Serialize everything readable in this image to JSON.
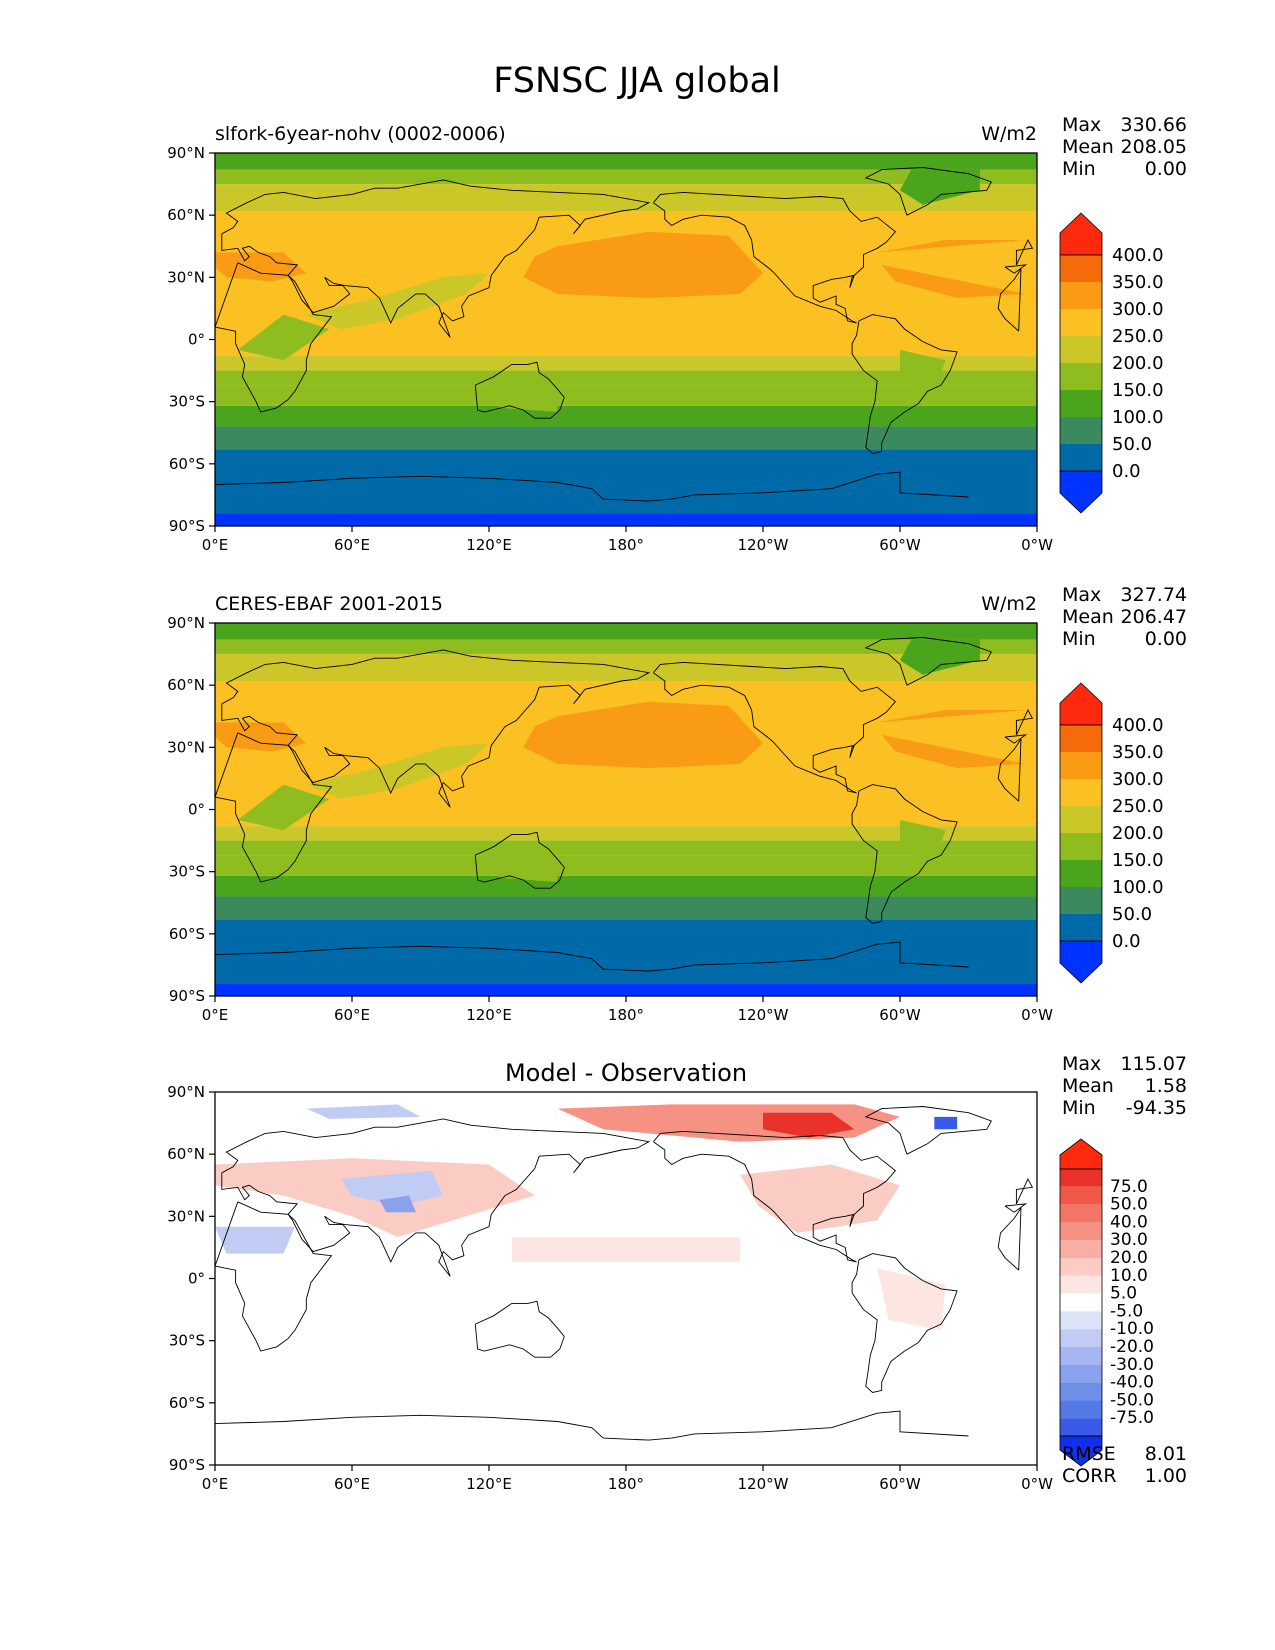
{
  "figure_title": "FSNSC JJA global",
  "colors": {
    "abs_levels": [
      "#0033ff",
      "#006aa8",
      "#3a8a5e",
      "#4aa51c",
      "#8fbd1f",
      "#cbc729",
      "#fbc122",
      "#f99b15",
      "#f56b09",
      "#ff2a0e"
    ],
    "diff_levels": [
      "#1030f0",
      "#3a5ae8",
      "#5478e6",
      "#6e8ee8",
      "#8aa2ec",
      "#a5b6f0",
      "#c1ccf4",
      "#dde3f8",
      "#ffffff",
      "#fde6e2",
      "#fbccc4",
      "#f9aea4",
      "#f69284",
      "#f37565",
      "#f05848",
      "#e8322a",
      "#ff2a0e"
    ],
    "land_outline": "#000000"
  },
  "chart_data": [
    {
      "type": "heatmap",
      "name": "test-map",
      "title_left": "slfork-6year-nohv (0002-0006)",
      "title_right": "W/m2",
      "title_center": "",
      "x_ticks": [
        "0°E",
        "60°E",
        "120°E",
        "180°",
        "120°W",
        "60°W",
        "0°W"
      ],
      "y_ticks": [
        "90°N",
        "60°N",
        "30°N",
        "0°",
        "30°S",
        "60°S",
        "90°S"
      ],
      "xlim": [
        0,
        360
      ],
      "ylim": [
        -90,
        90
      ],
      "stats": [
        {
          "label": "Max",
          "value": "330.66"
        },
        {
          "label": "Mean",
          "value": "208.05"
        },
        {
          "label": "Min",
          "value": "0.00"
        }
      ],
      "colorbar_labels": [
        "400.0",
        "350.0",
        "300.0",
        "250.0",
        "200.0",
        "150.0",
        "100.0",
        "50.0",
        "0.0"
      ],
      "zonal_bands": [
        {
          "lat": [
            82,
            90
          ],
          "level": 3
        },
        {
          "lat": [
            75,
            82
          ],
          "level": 4
        },
        {
          "lat": [
            62,
            75
          ],
          "level": 5
        },
        {
          "lat": [
            -8,
            62
          ],
          "level": 6
        },
        {
          "lat": [
            -15,
            -8
          ],
          "level": 5
        },
        {
          "lat": [
            -22,
            -15
          ],
          "level": 4
        },
        {
          "lat": [
            -32,
            -22
          ],
          "level": 4
        },
        {
          "lat": [
            -42,
            -32
          ],
          "level": 3
        },
        {
          "lat": [
            -53,
            -42
          ],
          "level": 2
        },
        {
          "lat": [
            -84,
            -53
          ],
          "level": 1
        },
        {
          "lat": [
            -90,
            -84
          ],
          "level": 0
        }
      ]
    },
    {
      "type": "heatmap",
      "name": "reference-map",
      "title_left": "CERES-EBAF 2001-2015",
      "title_right": "W/m2",
      "title_center": "",
      "x_ticks": [
        "0°E",
        "60°E",
        "120°E",
        "180°",
        "120°W",
        "60°W",
        "0°W"
      ],
      "y_ticks": [
        "90°N",
        "60°N",
        "30°N",
        "0°",
        "30°S",
        "60°S",
        "90°S"
      ],
      "xlim": [
        0,
        360
      ],
      "ylim": [
        -90,
        90
      ],
      "stats": [
        {
          "label": "Max",
          "value": "327.74"
        },
        {
          "label": "Mean",
          "value": "206.47"
        },
        {
          "label": "Min",
          "value": "0.00"
        }
      ],
      "colorbar_labels": [
        "400.0",
        "350.0",
        "300.0",
        "250.0",
        "200.0",
        "150.0",
        "100.0",
        "50.0",
        "0.0"
      ],
      "zonal_bands": [
        {
          "lat": [
            82,
            90
          ],
          "level": 3
        },
        {
          "lat": [
            75,
            82
          ],
          "level": 4
        },
        {
          "lat": [
            62,
            75
          ],
          "level": 5
        },
        {
          "lat": [
            -8,
            62
          ],
          "level": 6
        },
        {
          "lat": [
            -15,
            -8
          ],
          "level": 5
        },
        {
          "lat": [
            -22,
            -15
          ],
          "level": 4
        },
        {
          "lat": [
            -32,
            -22
          ],
          "level": 4
        },
        {
          "lat": [
            -42,
            -32
          ],
          "level": 3
        },
        {
          "lat": [
            -53,
            -42
          ],
          "level": 2
        },
        {
          "lat": [
            -84,
            -53
          ],
          "level": 1
        },
        {
          "lat": [
            -90,
            -84
          ],
          "level": 0
        }
      ]
    },
    {
      "type": "heatmap",
      "name": "difference-map",
      "title_left": "",
      "title_right": "",
      "title_center": "Model - Observation",
      "x_ticks": [
        "0°E",
        "60°E",
        "120°E",
        "180°",
        "120°W",
        "60°W",
        "0°W"
      ],
      "y_ticks": [
        "90°N",
        "60°N",
        "30°N",
        "0°",
        "30°S",
        "60°S",
        "90°S"
      ],
      "xlim": [
        0,
        360
      ],
      "ylim": [
        -90,
        90
      ],
      "stats": [
        {
          "label": "Max",
          "value": "115.07"
        },
        {
          "label": "Mean",
          "value": "1.58"
        },
        {
          "label": "Min",
          "value": "-94.35"
        }
      ],
      "colorbar_labels": [
        "75.0",
        "50.0",
        "40.0",
        "30.0",
        "20.0",
        "10.0",
        "5.0",
        "-5.0",
        "-10.0",
        "-20.0",
        "-30.0",
        "-40.0",
        "-50.0",
        "-75.0"
      ],
      "error_stats": [
        {
          "label": "RMSE",
          "value": "8.01"
        },
        {
          "label": "CORR",
          "value": "1.00"
        }
      ]
    }
  ]
}
